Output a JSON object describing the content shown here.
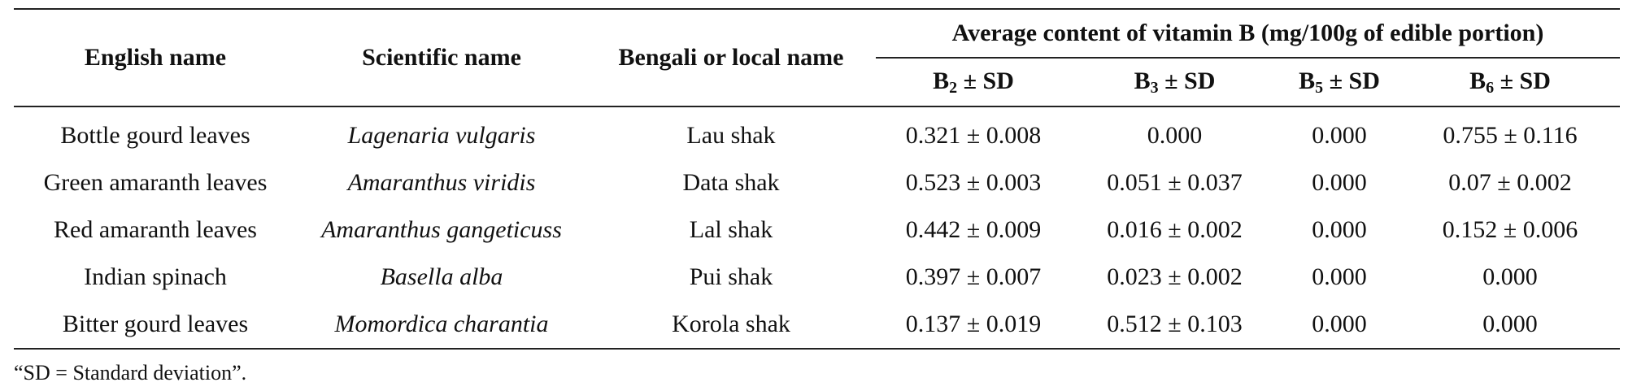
{
  "header": {
    "english_name": "English name",
    "scientific_name": "Scientific name",
    "bengali_name": "Bengali or local name",
    "vitamin_group": "Average content of vitamin B (mg/100g of edible portion)",
    "sd_suffix": " ± SD",
    "vitamins": [
      {
        "letter": "B",
        "sub": "2"
      },
      {
        "letter": "B",
        "sub": "3"
      },
      {
        "letter": "B",
        "sub": "5"
      },
      {
        "letter": "B",
        "sub": "6"
      }
    ]
  },
  "rows": [
    {
      "english": "Bottle gourd leaves",
      "scientific": "Lagenaria vulgaris",
      "local": "Lau shak",
      "b2": "0.321 ± 0.008",
      "b3": "0.000",
      "b5": "0.000",
      "b6": "0.755 ± 0.116"
    },
    {
      "english": "Green amaranth leaves",
      "scientific": "Amaranthus viridis",
      "local": "Data shak",
      "b2": "0.523 ± 0.003",
      "b3": "0.051 ± 0.037",
      "b5": "0.000",
      "b6": "0.07 ± 0.002"
    },
    {
      "english": "Red amaranth leaves",
      "scientific": "Amaranthus gangeticuss",
      "local": "Lal shak",
      "b2": "0.442 ± 0.009",
      "b3": "0.016 ± 0.002",
      "b5": "0.000",
      "b6": "0.152 ± 0.006"
    },
    {
      "english": "Indian spinach",
      "scientific": "Basella alba",
      "local": "Pui shak",
      "b2": "0.397 ± 0.007",
      "b3": "0.023 ± 0.002",
      "b5": "0.000",
      "b6": "0.000"
    },
    {
      "english": "Bitter gourd leaves",
      "scientific": "Momordica charantia",
      "local": "Korola shak",
      "b2": "0.137 ± 0.019",
      "b3": "0.512 ± 0.103",
      "b5": "0.000",
      "b6": "0.000"
    }
  ],
  "footnote": "“SD = Standard deviation”."
}
